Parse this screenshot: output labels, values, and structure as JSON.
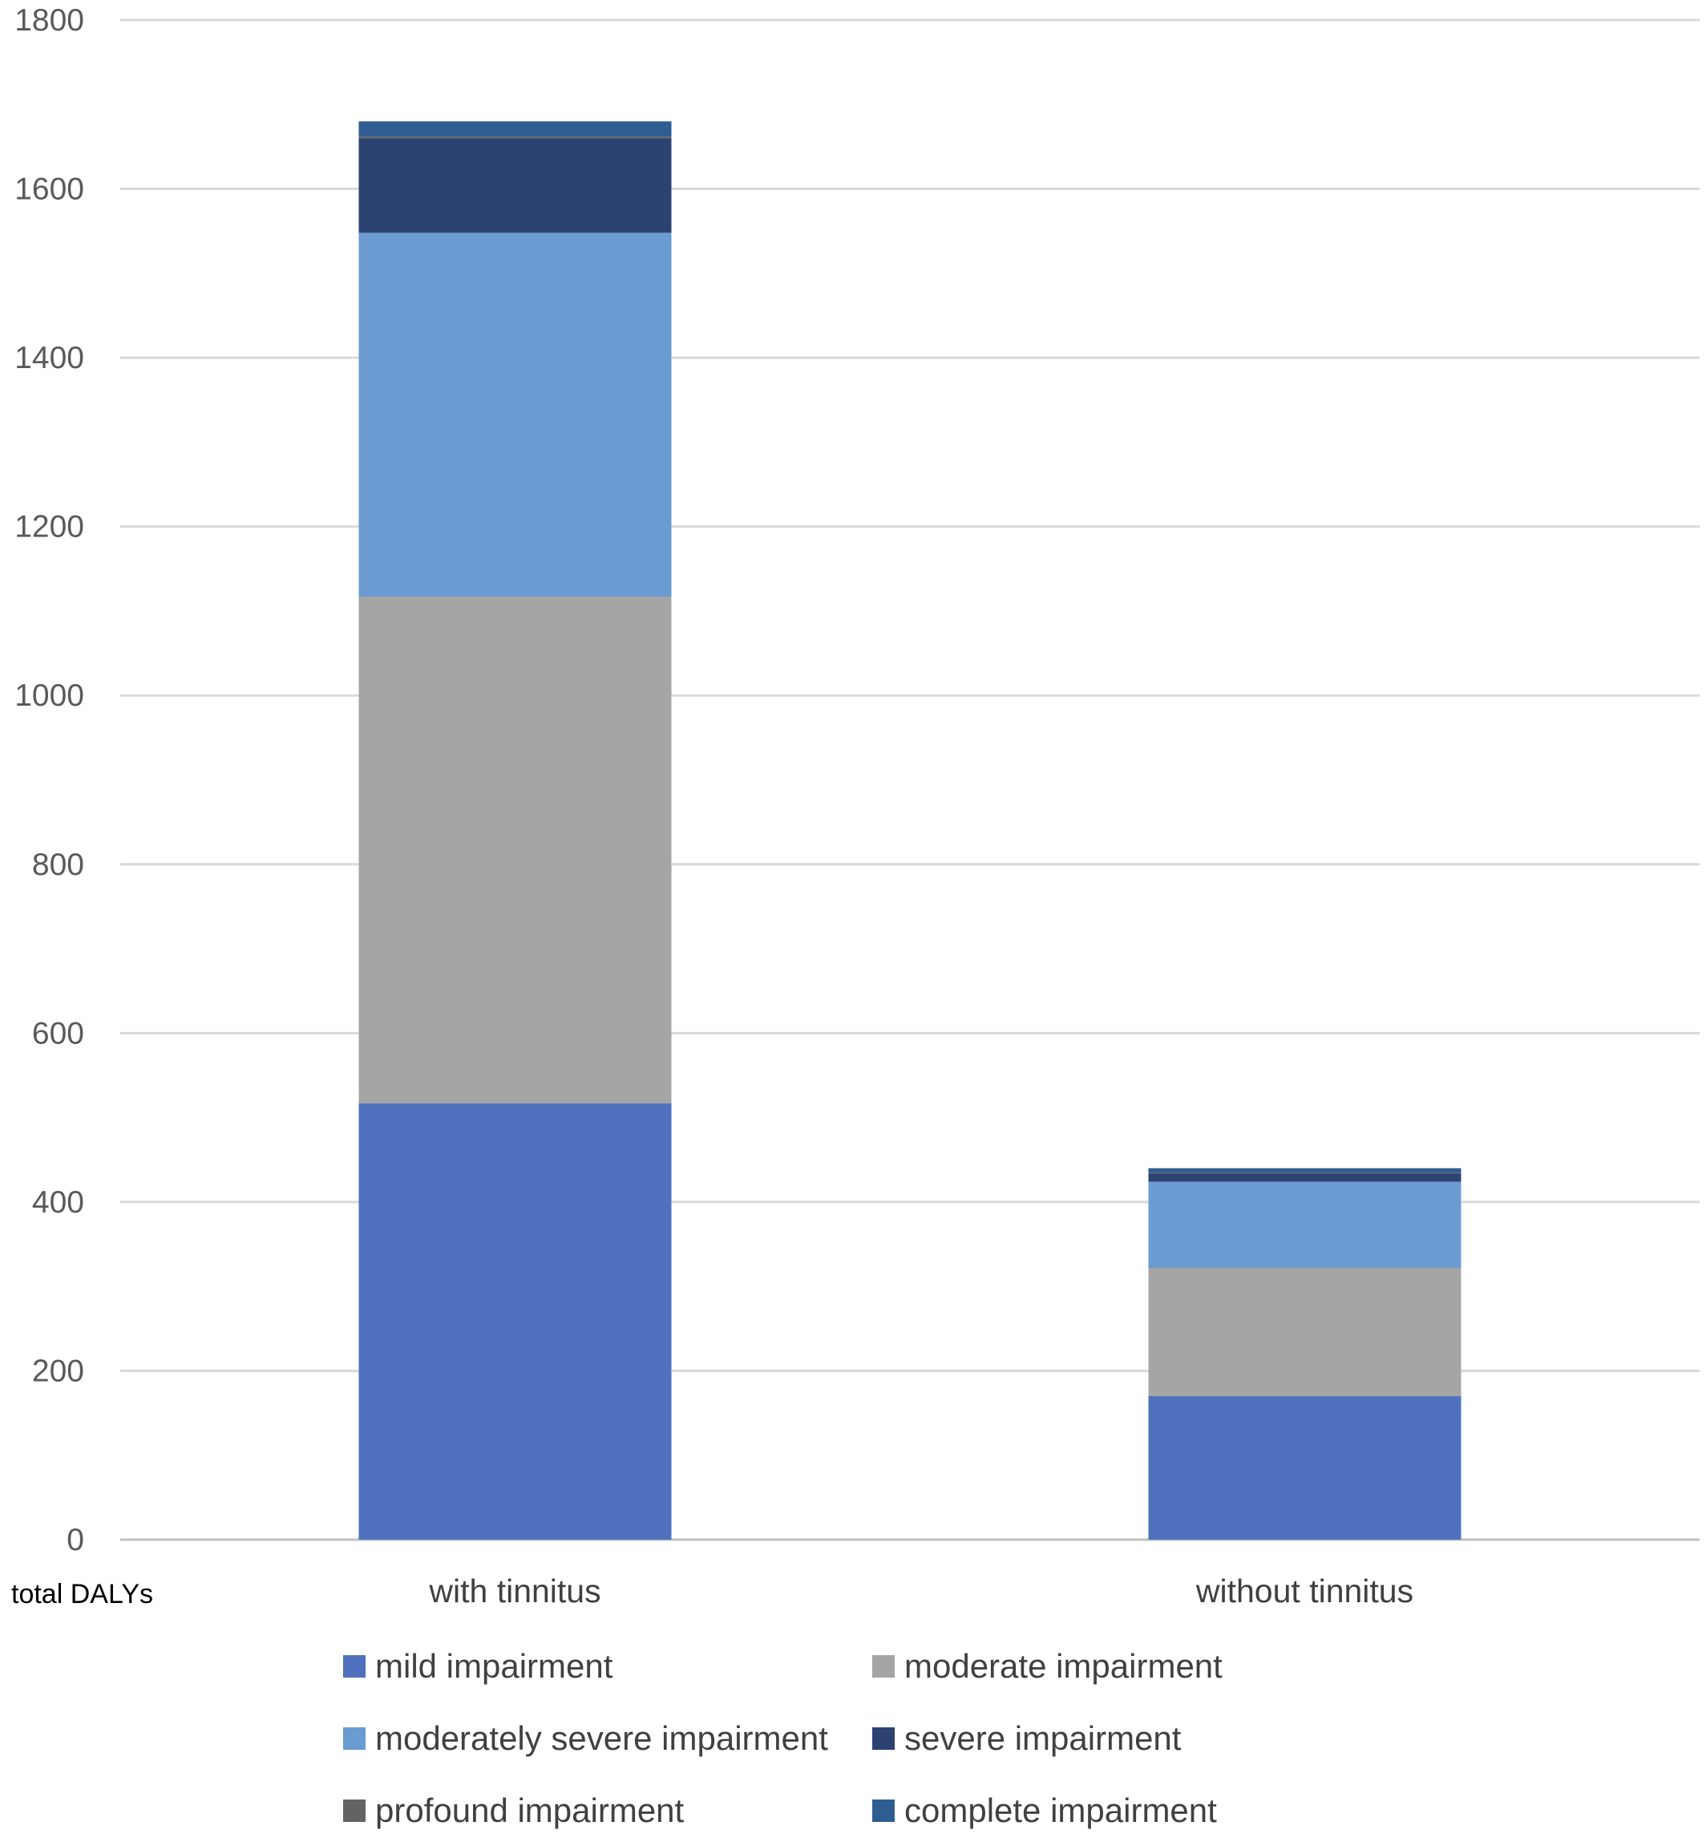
{
  "chart_data": {
    "type": "bar",
    "stacked": true,
    "xlabel": "total DALYs",
    "ylabel": "",
    "ylim": [
      0,
      1800
    ],
    "yticks": [
      0,
      200,
      400,
      600,
      800,
      1000,
      1200,
      1400,
      1600,
      1800
    ],
    "grid": true,
    "legend_position": "bottom",
    "categories": [
      "with tinnitus",
      "without tinnitus"
    ],
    "series": [
      {
        "name": "mild impairment",
        "color": "#4F71BE",
        "values": [
          517,
          170
        ]
      },
      {
        "name": "moderate impairment",
        "color": "#A5A5A5",
        "values": [
          600,
          152
        ]
      },
      {
        "name": "moderately severe impairment",
        "color": "#6A9BD1",
        "values": [
          431,
          102
        ]
      },
      {
        "name": "severe impairment",
        "color": "#2C4372",
        "values": [
          112,
          10
        ]
      },
      {
        "name": "profound impairment",
        "color": "#636363",
        "values": [
          2,
          1
        ]
      },
      {
        "name": "complete impairment",
        "color": "#2F5D91",
        "values": [
          18,
          5
        ]
      }
    ]
  }
}
